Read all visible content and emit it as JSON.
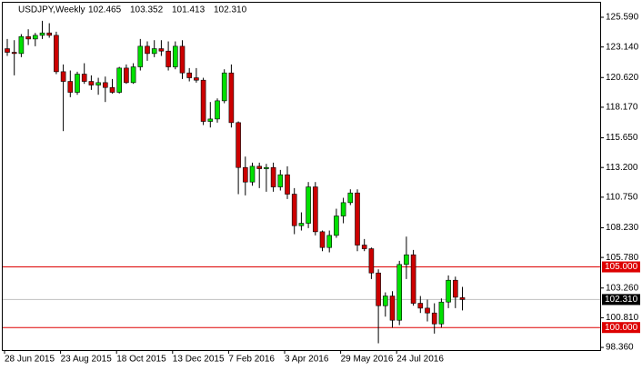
{
  "chart_data": {
    "type": "candlestick",
    "title": "USDJPY,Weekly",
    "header_values": [
      "102.465",
      "103.352",
      "101.413",
      "102.310"
    ],
    "categories": [
      "28 Jun 2015",
      null,
      null,
      null,
      null,
      null,
      null,
      null,
      "23 Aug 2015",
      null,
      null,
      null,
      null,
      null,
      null,
      null,
      "18 Oct 2015",
      null,
      null,
      null,
      null,
      null,
      null,
      null,
      "13 Dec 2015",
      null,
      null,
      null,
      null,
      null,
      null,
      null,
      "7 Feb 2016",
      null,
      null,
      null,
      null,
      null,
      null,
      null,
      "3 Apr 2016",
      null,
      null,
      null,
      null,
      null,
      null,
      null,
      "29 May 2016",
      null,
      null,
      null,
      null,
      null,
      null,
      null,
      "24 Jul 2016",
      null,
      null,
      null,
      null,
      null,
      null,
      null,
      null,
      null
    ],
    "open": [
      123.0,
      122.7,
      122.6,
      124.0,
      123.8,
      124.1,
      124.3,
      124.1,
      121.1,
      120.3,
      119.4,
      120.9,
      120.3,
      120.0,
      120.2,
      119.8,
      119.4,
      121.4,
      120.2,
      121.5,
      123.2,
      122.6,
      123.0,
      122.8,
      121.5,
      123.2,
      121.0,
      120.6,
      120.4,
      117.0,
      117.2,
      118.7,
      121.0,
      116.9,
      113.2,
      112.0,
      113.3,
      113.1,
      113.2,
      111.6,
      112.6,
      111.0,
      108.4,
      108.6,
      111.6,
      107.9,
      106.6,
      107.6,
      109.2,
      110.3,
      111.1,
      106.8,
      106.5,
      104.5,
      101.8,
      102.6,
      100.6,
      105.2,
      106.0,
      102.0,
      101.6,
      101.2,
      100.3,
      102.1,
      103.9,
      102.465
    ],
    "high": [
      123.8,
      123.7,
      124.2,
      124.6,
      124.3,
      125.3,
      125.1,
      124.4,
      121.7,
      121.2,
      121.1,
      121.8,
      120.8,
      120.6,
      120.7,
      120.5,
      121.5,
      121.7,
      121.8,
      123.8,
      123.6,
      123.7,
      123.7,
      123.6,
      123.6,
      123.7,
      121.4,
      121.4,
      120.6,
      118.6,
      118.9,
      121.3,
      121.7,
      117.0,
      114.1,
      113.6,
      113.6,
      113.5,
      113.6,
      113.0,
      113.3,
      111.5,
      109.5,
      112.0,
      112.0,
      108.0,
      108.0,
      109.8,
      110.7,
      111.4,
      111.4,
      107.3,
      106.6,
      104.8,
      102.9,
      103.0,
      105.5,
      107.5,
      106.4,
      102.6,
      102.3,
      102.0,
      102.4,
      104.3,
      104.2,
      103.352
    ],
    "low": [
      122.4,
      120.8,
      122.3,
      123.3,
      123.2,
      123.8,
      123.9,
      120.9,
      116.2,
      119.0,
      119.2,
      120.1,
      119.6,
      119.2,
      118.6,
      119.3,
      119.3,
      120.1,
      120.1,
      121.2,
      122.0,
      122.3,
      122.4,
      121.2,
      121.3,
      120.5,
      120.3,
      120.2,
      116.7,
      116.5,
      116.9,
      118.5,
      116.5,
      111.0,
      110.9,
      111.7,
      111.5,
      111.2,
      111.2,
      111.3,
      110.6,
      107.7,
      108.0,
      108.2,
      107.6,
      106.3,
      106.2,
      107.4,
      108.6,
      110.1,
      106.3,
      106.3,
      104.0,
      98.7,
      100.9,
      100.0,
      100.2,
      104.0,
      101.8,
      101.2,
      100.5,
      99.5,
      100.0,
      101.6,
      101.6,
      101.413
    ],
    "close": [
      122.7,
      122.6,
      124.0,
      123.8,
      124.1,
      124.3,
      124.1,
      121.1,
      120.3,
      119.4,
      120.9,
      120.3,
      120.0,
      120.2,
      119.8,
      119.4,
      121.4,
      120.2,
      121.5,
      123.2,
      122.6,
      123.0,
      122.8,
      121.5,
      123.2,
      121.0,
      120.6,
      120.4,
      117.0,
      117.2,
      118.7,
      121.0,
      116.9,
      113.2,
      112.0,
      113.3,
      113.1,
      113.2,
      111.6,
      112.6,
      111.0,
      108.4,
      108.6,
      111.6,
      107.9,
      106.6,
      107.6,
      109.2,
      110.3,
      111.1,
      106.8,
      106.5,
      104.5,
      101.8,
      102.6,
      100.6,
      105.2,
      106.0,
      102.0,
      101.6,
      101.2,
      100.3,
      102.1,
      103.9,
      102.5,
      102.31
    ],
    "up_color": "#00e000",
    "down_color": "#cc0000",
    "ylim": [
      98.14,
      126.79
    ],
    "yticks": [
      {
        "value": 125.59,
        "label": "125.590"
      },
      {
        "value": 123.14,
        "label": "123.140"
      },
      {
        "value": 120.62,
        "label": "120.620"
      },
      {
        "value": 118.17,
        "label": "118.170"
      },
      {
        "value": 115.65,
        "label": "115.650"
      },
      {
        "value": 113.2,
        "label": "113.200"
      },
      {
        "value": 110.75,
        "label": "110.750"
      },
      {
        "value": 108.23,
        "label": "108.230"
      },
      {
        "value": 105.78,
        "label": "105.780"
      },
      {
        "value": 103.26,
        "label": "103.260"
      },
      {
        "value": 100.81,
        "label": "100.810"
      },
      {
        "value": 98.36,
        "label": "98.360"
      }
    ],
    "levels": [
      {
        "value": 105,
        "label": "105.000",
        "color": "#dd0000"
      },
      {
        "value": 100,
        "label": "100.000",
        "color": "#dd0000"
      }
    ],
    "current": {
      "value": 102.31,
      "label": "102.310",
      "color": "#000000"
    }
  }
}
